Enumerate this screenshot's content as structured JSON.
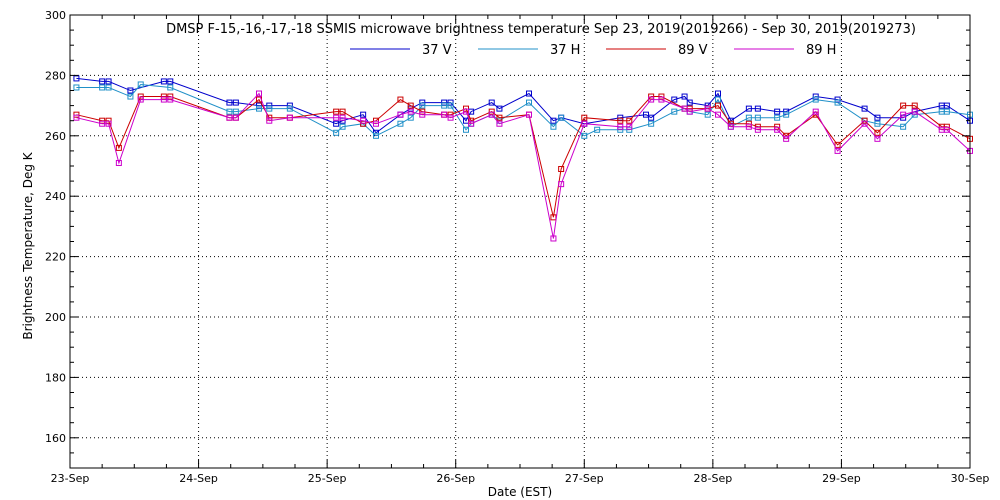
{
  "chart_data": {
    "type": "line",
    "title": "DMSP F-15,-16,-17,-18 SSMIS microwave brightness temperature Sep 23, 2019(2019266) - Sep 30, 2019(2019273)",
    "xlabel": "Date (EST)",
    "ylabel": "Brightness Temperature, Deg K",
    "xlim": [
      0,
      7
    ],
    "ylim": [
      150,
      300
    ],
    "x_tick_values": [
      0,
      1,
      2,
      3,
      4,
      5,
      6,
      7
    ],
    "x_tick_labels": [
      "23-Sep",
      "24-Sep",
      "25-Sep",
      "26-Sep",
      "27-Sep",
      "28-Sep",
      "29-Sep",
      "30-Sep"
    ],
    "y_ticks": [
      160,
      180,
      200,
      220,
      240,
      260,
      280,
      300
    ],
    "grid": true,
    "legend_position": "top-center",
    "series": [
      {
        "name": "37 V",
        "color": "#0000cc",
        "x": [
          0.05,
          0.25,
          0.3,
          0.47,
          0.73,
          0.78,
          1.24,
          1.29,
          1.47,
          1.55,
          1.71,
          2.07,
          2.12,
          2.28,
          2.38,
          2.57,
          2.65,
          2.74,
          2.91,
          2.96,
          3.08,
          3.12,
          3.28,
          3.34,
          3.57,
          3.76,
          3.82,
          4.0,
          4.28,
          4.48,
          4.52,
          4.7,
          4.78,
          4.82,
          4.96,
          5.04,
          5.14,
          5.28,
          5.35,
          5.5,
          5.57,
          5.8,
          5.97,
          6.18,
          6.28,
          6.48,
          6.57,
          6.78,
          6.82,
          7.0
        ],
        "values": [
          279,
          278,
          278,
          275,
          278,
          278,
          271,
          271,
          270,
          270,
          270,
          264,
          265,
          267,
          261,
          267,
          269,
          271,
          271,
          271,
          265,
          268,
          271,
          269,
          274,
          265,
          266,
          264,
          266,
          267,
          266,
          272,
          273,
          271,
          270,
          274,
          265,
          269,
          269,
          268,
          268,
          273,
          272,
          269,
          266,
          266,
          268,
          270,
          270,
          265
        ]
      },
      {
        "name": "37 H",
        "color": "#2090c8",
        "x": [
          0.05,
          0.25,
          0.3,
          0.47,
          0.55,
          0.78,
          1.24,
          1.29,
          1.47,
          1.55,
          1.71,
          2.07,
          2.12,
          2.28,
          2.38,
          2.57,
          2.65,
          2.74,
          2.91,
          2.96,
          3.08,
          3.12,
          3.28,
          3.34,
          3.57,
          3.76,
          3.82,
          4.0,
          4.1,
          4.28,
          4.35,
          4.52,
          4.7,
          4.78,
          4.82,
          4.96,
          5.04,
          5.14,
          5.28,
          5.35,
          5.5,
          5.57,
          5.8,
          5.97,
          6.18,
          6.28,
          6.48,
          6.57,
          6.78,
          6.82,
          7.0
        ],
        "values": [
          276,
          276,
          276,
          273,
          277,
          276,
          268,
          268,
          269,
          269,
          269,
          261,
          263,
          264,
          260,
          264,
          266,
          270,
          270,
          270,
          262,
          264,
          267,
          265,
          271,
          263,
          266,
          260,
          262,
          262,
          262,
          264,
          268,
          269,
          268,
          267,
          272,
          263,
          266,
          266,
          266,
          267,
          272,
          271,
          265,
          264,
          263,
          267,
          268,
          268,
          267
        ]
      },
      {
        "name": "89 V",
        "color": "#cc0000",
        "x": [
          0.05,
          0.25,
          0.3,
          0.38,
          0.55,
          0.73,
          0.78,
          1.24,
          1.29,
          1.47,
          1.55,
          1.71,
          2.07,
          2.12,
          2.28,
          2.38,
          2.57,
          2.65,
          2.74,
          2.91,
          2.96,
          3.08,
          3.12,
          3.28,
          3.34,
          3.57,
          3.76,
          3.82,
          4.0,
          4.28,
          4.35,
          4.52,
          4.6,
          4.78,
          4.82,
          4.96,
          5.04,
          5.14,
          5.28,
          5.35,
          5.5,
          5.57,
          5.8,
          5.97,
          6.18,
          6.28,
          6.48,
          6.57,
          6.78,
          6.82,
          7.0
        ],
        "values": [
          267,
          265,
          265,
          256,
          273,
          273,
          273,
          266,
          266,
          272,
          266,
          266,
          268,
          268,
          264,
          265,
          272,
          270,
          268,
          267,
          267,
          269,
          265,
          268,
          266,
          267,
          233,
          249,
          266,
          265,
          265,
          273,
          273,
          269,
          269,
          269,
          270,
          264,
          264,
          263,
          263,
          260,
          267,
          257,
          265,
          261,
          270,
          270,
          263,
          263,
          259
        ]
      },
      {
        "name": "89 H",
        "color": "#cc00cc",
        "x": [
          0.05,
          0.25,
          0.3,
          0.38,
          0.55,
          0.73,
          0.78,
          1.24,
          1.29,
          1.47,
          1.55,
          1.71,
          2.07,
          2.12,
          2.28,
          2.38,
          2.57,
          2.65,
          2.74,
          2.91,
          2.96,
          3.08,
          3.12,
          3.28,
          3.34,
          3.57,
          3.76,
          3.82,
          4.0,
          4.28,
          4.35,
          4.52,
          4.6,
          4.78,
          4.82,
          4.96,
          5.04,
          5.14,
          5.28,
          5.35,
          5.5,
          5.57,
          5.8,
          5.97,
          6.18,
          6.28,
          6.48,
          6.57,
          6.78,
          6.82,
          7.0
        ],
        "values": [
          266,
          264,
          264,
          251,
          272,
          272,
          272,
          266,
          266,
          274,
          265,
          266,
          266,
          266,
          265,
          264,
          267,
          268,
          267,
          267,
          266,
          268,
          264,
          267,
          264,
          267,
          226,
          244,
          264,
          263,
          263,
          272,
          272,
          269,
          268,
          269,
          267,
          263,
          263,
          262,
          262,
          259,
          268,
          255,
          264,
          259,
          267,
          268,
          262,
          262,
          255
        ]
      }
    ]
  }
}
